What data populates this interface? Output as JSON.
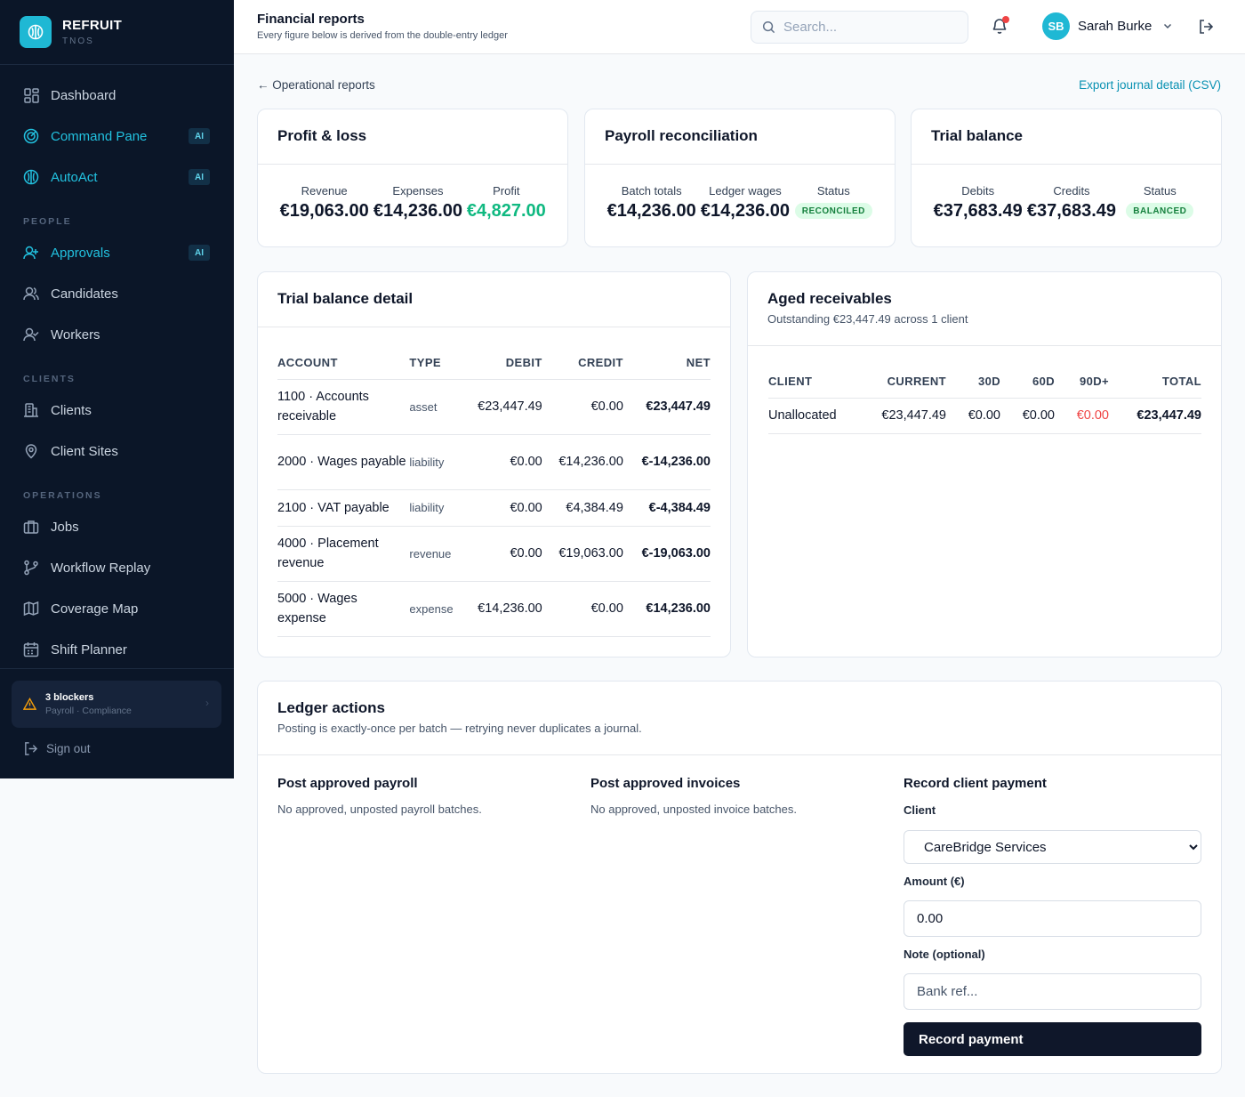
{
  "brand": {
    "name": "REFRUIT",
    "sub": "TNOS"
  },
  "sidebar": {
    "items": [
      {
        "label": "Dashboard"
      },
      {
        "label": "Command Pane",
        "badge": "AI"
      },
      {
        "label": "AutoAct",
        "badge": "AI"
      },
      {
        "label": "Approvals",
        "badge": "AI"
      },
      {
        "label": "Candidates"
      },
      {
        "label": "Workers"
      },
      {
        "label": "Clients"
      },
      {
        "label": "Client Sites"
      },
      {
        "label": "Jobs"
      },
      {
        "label": "Workflow Replay"
      },
      {
        "label": "Coverage Map"
      },
      {
        "label": "Shift Planner"
      }
    ],
    "sections": {
      "people": "PEOPLE",
      "clients": "CLIENTS",
      "operations": "OPERATIONS"
    },
    "blocker": {
      "title": "3 blockers",
      "sub": "Payroll · Compliance"
    },
    "signout": "Sign out"
  },
  "header": {
    "title": "Financial reports",
    "subtitle": "Every figure below is derived from the double-entry ledger",
    "search_placeholder": "Search...",
    "user": {
      "initials": "SB",
      "name": "Sarah Burke"
    }
  },
  "main": {
    "back_link": "← Operational reports",
    "export_link": "Export journal detail (CSV)"
  },
  "pnl": {
    "title": "Profit & loss",
    "revenue_label": "Revenue",
    "revenue": "€19,063.00",
    "expenses_label": "Expenses",
    "expenses": "€14,236.00",
    "profit_label": "Profit",
    "profit": "€4,827.00"
  },
  "payroll": {
    "title": "Payroll reconciliation",
    "batch_label": "Batch totals",
    "batch": "€14,236.00",
    "ledger_label": "Ledger wages",
    "ledger": "€14,236.00",
    "status_label": "Status",
    "status": "RECONCILED"
  },
  "trial": {
    "title": "Trial balance",
    "debits_label": "Debits",
    "debits": "€37,683.49",
    "credits_label": "Credits",
    "credits": "€37,683.49",
    "status_label": "Status",
    "status": "BALANCED"
  },
  "tb_detail": {
    "title": "Trial balance detail",
    "columns": {
      "account": "ACCOUNT",
      "type": "TYPE",
      "debit": "DEBIT",
      "credit": "CREDIT",
      "net": "NET"
    },
    "rows": [
      {
        "account": "1100 · Accounts receivable",
        "type": "asset",
        "debit": "€23,447.49",
        "credit": "€0.00",
        "net": "€23,447.49"
      },
      {
        "account": "2000 · Wages payable",
        "type": "liability",
        "debit": "€0.00",
        "credit": "€14,236.00",
        "net": "€-14,236.00"
      },
      {
        "account": "2100 · VAT payable",
        "type": "liability",
        "debit": "€0.00",
        "credit": "€4,384.49",
        "net": "€-4,384.49"
      },
      {
        "account": "4000 · Placement revenue",
        "type": "revenue",
        "debit": "€0.00",
        "credit": "€19,063.00",
        "net": "€-19,063.00"
      },
      {
        "account": "5000 · Wages expense",
        "type": "expense",
        "debit": "€14,236.00",
        "credit": "€0.00",
        "net": "€14,236.00"
      }
    ]
  },
  "aged": {
    "title": "Aged receivables",
    "subtitle": "Outstanding €23,447.49 across 1 client",
    "columns": {
      "client": "CLIENT",
      "current": "CURRENT",
      "d30": "30D",
      "d60": "60D",
      "d90": "90D+",
      "total": "TOTAL"
    },
    "rows": [
      {
        "client": "Unallocated",
        "current": "€23,447.49",
        "d30": "€0.00",
        "d60": "€0.00",
        "d90": "€0.00",
        "total": "€23,447.49"
      }
    ]
  },
  "ledger": {
    "title": "Ledger actions",
    "subtitle": "Posting is exactly-once per batch — retrying never duplicates a journal.",
    "payroll_title": "Post approved payroll",
    "payroll_text": "No approved, unposted payroll batches.",
    "invoices_title": "Post approved invoices",
    "invoices_text": "No approved, unposted invoice batches.",
    "payment_title": "Record client payment",
    "client_label": "Client",
    "client_selected": "CareBridge Services",
    "amount_label": "Amount (€)",
    "amount_value": "0.00",
    "note_label": "Note (optional)",
    "note_placeholder": "Bank ref...",
    "submit_label": "Record payment"
  },
  "colors": {
    "sidebar_bg": "#0b1628",
    "accent": "#1fb8d4",
    "profit_green": "#10b981",
    "overdue_red": "#ef4444",
    "primary_button": "#0f172a"
  }
}
